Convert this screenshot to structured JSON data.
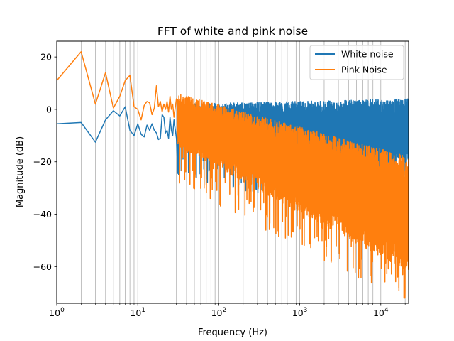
{
  "chart_data": {
    "type": "line",
    "title": "FFT of white and pink noise",
    "xlabel": "Frequency (Hz)",
    "ylabel": "Magnitude (dB)",
    "x_scale": "log",
    "xlim": [
      1,
      22050
    ],
    "ylim": [
      -74,
      26
    ],
    "x_ticks": [
      1,
      10,
      100,
      1000,
      10000
    ],
    "x_tick_labels": [
      {
        "base": "10",
        "exp": "0"
      },
      {
        "base": "10",
        "exp": "1"
      },
      {
        "base": "10",
        "exp": "2"
      },
      {
        "base": "10",
        "exp": "3"
      },
      {
        "base": "10",
        "exp": "4"
      }
    ],
    "y_ticks": [
      20,
      0,
      -20,
      -40,
      -60
    ],
    "y_tick_labels": [
      "20",
      "0",
      "−20",
      "−40",
      "−60"
    ],
    "grid": "x major and minor",
    "legend_position": "upper right",
    "series": [
      {
        "name": "White noise",
        "color": "#1f77b4",
        "envelope_high_end": 4,
        "envelope_low_end": -20,
        "points": [
          [
            1,
            -5.5
          ],
          [
            2,
            -5
          ],
          [
            3,
            -12.5
          ],
          [
            4,
            -4
          ],
          [
            5,
            -0.5
          ],
          [
            6,
            -2.5
          ],
          [
            7,
            1
          ],
          [
            8,
            -8
          ],
          [
            9,
            -10
          ],
          [
            10,
            -5.5
          ],
          [
            11,
            -9.5
          ],
          [
            12,
            -10.5
          ],
          [
            13,
            -6
          ],
          [
            14,
            -8
          ],
          [
            15,
            -5.5
          ],
          [
            16,
            -8
          ],
          [
            17,
            -9
          ],
          [
            18,
            -11.5
          ],
          [
            19,
            -11
          ],
          [
            20,
            -2
          ],
          [
            21,
            -3
          ],
          [
            22,
            -9
          ],
          [
            23,
            -8
          ],
          [
            24,
            -11
          ],
          [
            25,
            -3
          ],
          [
            26,
            -8
          ],
          [
            27,
            -10
          ],
          [
            28,
            -4
          ],
          [
            30,
            -11
          ]
        ]
      },
      {
        "name": "Pink Noise",
        "color": "#ff7f0e",
        "envelope_high_end": -18,
        "envelope_low_end": -62,
        "points": [
          [
            1,
            11
          ],
          [
            2,
            22
          ],
          [
            3,
            2
          ],
          [
            4,
            14
          ],
          [
            5,
            0.5
          ],
          [
            6,
            5
          ],
          [
            7,
            11
          ],
          [
            8,
            13
          ],
          [
            9,
            1
          ],
          [
            10,
            0
          ],
          [
            11,
            -4
          ],
          [
            12,
            1.5
          ],
          [
            13,
            3
          ],
          [
            14,
            2.5
          ],
          [
            15,
            -2
          ],
          [
            16,
            0.5
          ],
          [
            17,
            9
          ],
          [
            18,
            1
          ],
          [
            19,
            3
          ],
          [
            20,
            -1
          ],
          [
            21,
            2
          ],
          [
            22,
            0
          ],
          [
            23,
            3
          ],
          [
            24,
            -1
          ],
          [
            25,
            5
          ],
          [
            26,
            0
          ],
          [
            27,
            2
          ],
          [
            28,
            -3
          ],
          [
            30,
            4
          ]
        ]
      }
    ]
  }
}
